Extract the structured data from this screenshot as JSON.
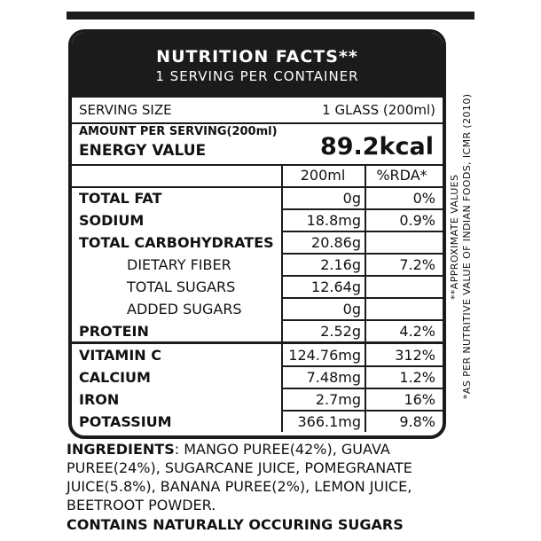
{
  "header": {
    "title": "NUTRITION FACTS**",
    "subtitle": "1 SERVING PER CONTAINER"
  },
  "serving": {
    "label": "SERVING SIZE",
    "value": "1 GLASS (200ml)"
  },
  "amount_label": "AMOUNT PER SERVING(200ml)",
  "energy": {
    "label": "ENERGY VALUE",
    "value": "89.2kcal"
  },
  "columns": {
    "amount": "200ml",
    "rda": "%RDA*"
  },
  "nutrients": [
    {
      "name": "TOTAL FAT",
      "amount": "0g",
      "rda": "0%"
    },
    {
      "name": "SODIUM",
      "amount": "18.8mg",
      "rda": "0.9%"
    },
    {
      "name": "TOTAL CARBOHYDRATES",
      "amount": "20.86g",
      "rda": ""
    },
    {
      "name": "DIETARY FIBER",
      "amount": "2.16g",
      "rda": "7.2%"
    },
    {
      "name": "TOTAL SUGARS",
      "amount": "12.64g",
      "rda": ""
    },
    {
      "name": "ADDED SUGARS",
      "amount": "0g",
      "rda": ""
    },
    {
      "name": "PROTEIN",
      "amount": "2.52g",
      "rda": "4.2%"
    },
    {
      "name": "VITAMIN C",
      "amount": "124.76mg",
      "rda": "312%"
    },
    {
      "name": "CALCIUM",
      "amount": "7.48mg",
      "rda": "1.2%"
    },
    {
      "name": "IRON",
      "amount": "2.7mg",
      "rda": "16%"
    },
    {
      "name": "POTASSIUM",
      "amount": "366.1mg",
      "rda": "9.8%"
    }
  ],
  "side_notes": {
    "approx": "**APPROXIMATE VALUES",
    "source": "*AS PER NUTRITIVE VALUE OF INDIAN FOODS, ICMR (2010)"
  },
  "ingredients": {
    "label": "INGREDIENTS",
    "text": ": MANGO PUREE(42%), GUAVA PUREE(24%), SUGARCANE JUICE, POMEGRANATE JUICE(5.8%), BANANA PUREE(2%), LEMON JUICE, BEETROOT POWDER."
  },
  "contains": "CONTAINS NATURALLY OCCURING SUGARS"
}
